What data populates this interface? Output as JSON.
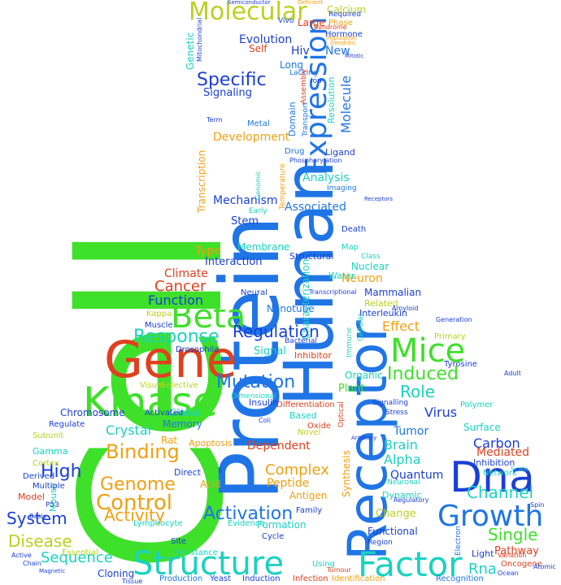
{
  "palette": {
    "green": "#3fe02a",
    "blue": "#1a3fd6",
    "azure": "#1f75e6",
    "teal": "#19d2c0",
    "red": "#e0401e",
    "orange": "#f0a012",
    "olive": "#b8d21e"
  },
  "words": {
    "cell": "Cell",
    "protein": "Protein",
    "human": "Human",
    "receptor": "Receptor",
    "gene": "Gene",
    "kinase": "Kinase",
    "dna": "Dna",
    "structure": "Structure",
    "factor": "Factor",
    "mice": "Mice",
    "beta": "Beta",
    "growth": "Growth",
    "expression": "Expression",
    "molecular": "Molecular",
    "control": "Control",
    "binding": "Binding",
    "genome": "Genome",
    "activation": "Activation",
    "mutation": "Mutation",
    "regulation": "Regulation",
    "response": "Response",
    "induced": "Induced",
    "specific": "Specific",
    "high": "High",
    "system": "System",
    "sequence": "Sequence",
    "disease": "Disease",
    "activity": "Activity",
    "single": "Single",
    "channel": "Channel",
    "rna": "Rna",
    "role": "Role",
    "complex": "Complex",
    "cancer": "Cancer",
    "function": "Function",
    "effect": "Effect",
    "analysis": "Analysis",
    "mechanism": "Mechanism",
    "associated": "Associated",
    "development": "Development",
    "evolution": "Evolution",
    "signaling": "Signaling",
    "molecule": "Molecule",
    "brain": "Brain",
    "carbon": "Carbon",
    "mediated": "Mediated",
    "pathway": "Pathway",
    "dependent": "Dependent",
    "virus": "Virus",
    "tumor": "Tumor",
    "quantum": "Quantum",
    "alpha": "Alpha",
    "peptide": "Peptide",
    "neuron": "Neuron",
    "interaction": "Interaction",
    "stem": "Stem",
    "crystal": "Crystal",
    "chromosome": "Chromosome",
    "type": "Type",
    "climate": "Climate",
    "genetic": "Genetic",
    "transcription": "Transcription",
    "characterization": "Characterization",
    "new": "New",
    "hiv": "Hiv",
    "self": "Self",
    "long": "Long",
    "domain": "Domain",
    "resolution": "Resolution",
    "signal": "Signal",
    "nanotube": "Nanotube",
    "plant": "Plant",
    "organic": "Organic",
    "membrane": "Membrane",
    "structural": "Structural",
    "nuclear": "Nuclear",
    "mammalian": "Mammalian",
    "water": "Water",
    "related": "Related",
    "interleukin": "Interleukin",
    "primary": "Primary",
    "inhibitor": "Inhibitor",
    "dynamic": "Dynamic",
    "change": "Change",
    "functional": "Functional",
    "surface": "Surface",
    "inhibition": "Inhibition",
    "network": "Network",
    "light": "Light",
    "calcium": "Calcium",
    "phase": "Phase",
    "hormone": "Hormone",
    "large": "Large",
    "acid": "Acid",
    "apoptosis": "Apoptosis",
    "rat": "Rat",
    "memory": "Memory",
    "global": "Global",
    "insulin": "Insulin",
    "based": "Based",
    "novel": "Novel",
    "oxide": "Oxide",
    "antigen": "Antigen",
    "formation": "Formation",
    "evidence": "Evidence",
    "cycle": "Cycle",
    "family": "Family",
    "synthesis": "Synthesis",
    "gamma": "Gamma",
    "cortex": "Cortex",
    "model": "Model",
    "mouse": "Mouse",
    "lymphocyte": "Lymphocyte",
    "direct": "Direct",
    "cloning": "Cloning",
    "yeast": "Yeast",
    "production": "Production",
    "induction": "Induction",
    "infection": "Infection",
    "identification": "Identification",
    "recognition": "Recognition",
    "oncogene": "Oncogene",
    "using": "Using",
    "resistance": "Resistance",
    "site": "Site",
    "essential": "Essential",
    "derived": "Derived",
    "multiple": "Multiple",
    "subunit": "Subunit",
    "regulate": "Regulate",
    "muscle": "Muscle",
    "kappa": "Kappa",
    "drosophila": "Drosophila",
    "selective": "Selective",
    "visual": "Visual",
    "differentiation": "Differentiation",
    "activated": "Activated",
    "tyrosine": "Tyrosine",
    "polymer": "Polymer",
    "bacterial": "Bacterial",
    "immune": "Immune",
    "cellular": "Cellular",
    "neural": "Neural",
    "death": "Death",
    "map": "Map",
    "class": "Class",
    "transport": "Transport",
    "ligand": "Ligand",
    "drug": "Drug",
    "imaging": "Imaging",
    "metal": "Metal",
    "lacking": "Lacking",
    "ion": "Ion",
    "early": "Early",
    "temperature": "Temperature",
    "phosphorylation": "Phosphorylation",
    "mitochondrial": "Mitochondrial",
    "vivo": "Vivo",
    "required": "Required",
    "population": "Population",
    "syndrome": "Syndrome",
    "dimensional": "Dimensional",
    "optical": "Optical",
    "transcriptional": "Transcriptional",
    "generation": "Generation",
    "amyloid": "Amyloid",
    "stress": "Stress",
    "signalling": "Signalling",
    "neuronal": "Neuronal",
    "regulatory": "Regulatory",
    "electron": "Electron",
    "scale": "Scale",
    "adult": "Adult",
    "variation": "Variation",
    "atomic": "Atomic",
    "ocean": "Ocean",
    "spin": "Spin",
    "p53": "P53",
    "basis": "Basis",
    "magnetic": "Magnetic",
    "active": "Active",
    "chain": "Chain",
    "tissue": "Tissue",
    "tumour": "Tumour",
    "region": "Region",
    "assembly": "Assembly",
    "ii": "Ii",
    "coli": "Coli",
    "genomic": "Genomic",
    "term": "Term",
    "semiconductor": "Semiconductor",
    "deficient": "Deficient",
    "mitotic": "Mitotic",
    "dendritic": "Dendritic",
    "antibody": "Antibody",
    "receptors": "Receptors"
  }
}
